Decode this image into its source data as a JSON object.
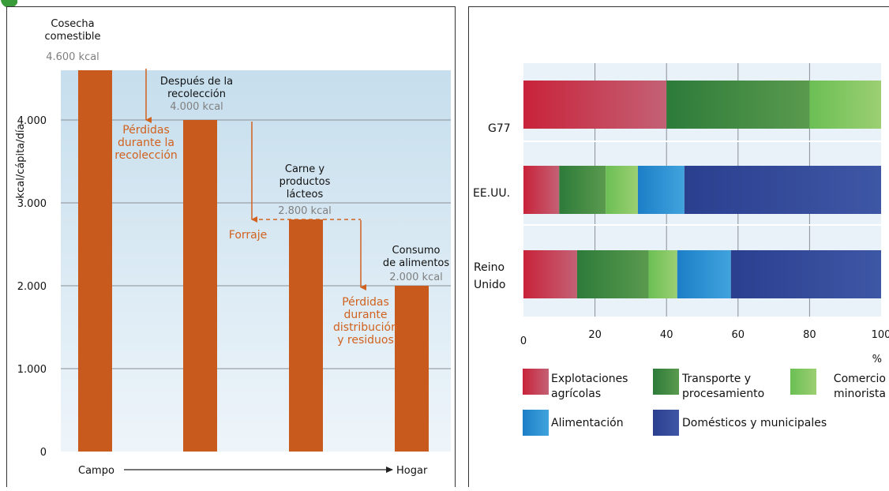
{
  "chart_data": [
    {
      "type": "bar",
      "ylabel": "kcal/cápita/día",
      "yticks": [
        "0",
        "1.000",
        "2.000",
        "3.000",
        "4.000"
      ],
      "ylim": [
        0,
        4600
      ],
      "grid": true,
      "bars": [
        {
          "value": 4600,
          "label_lines": [
            "Cosecha",
            "comestible"
          ],
          "value_label": "4.600 kcal"
        },
        {
          "value": 4000,
          "label_lines": [
            "Después de la",
            "recolección"
          ],
          "value_label": "4.000 kcal"
        },
        {
          "value": 2800,
          "label_lines": [
            "Carne y",
            "productos",
            "lácteos"
          ],
          "value_label": "2.800 kcal"
        },
        {
          "value": 2000,
          "label_lines": [
            "Consumo",
            "de alimentos"
          ],
          "value_label": "2.000 kcal"
        }
      ],
      "losses": [
        {
          "lines": [
            "Pérdidas",
            "durante la",
            "recolección"
          ]
        },
        {
          "lines": [
            "Forraje"
          ]
        },
        {
          "lines": [
            "Pérdidas",
            "durante",
            "distribución",
            "y residuos"
          ]
        }
      ],
      "xaxis": {
        "start": "Campo",
        "end": "Hogar"
      },
      "colors": {
        "bar": "#c85a1e",
        "loss_text": "#d1611e",
        "value_text": "#7f7f7f",
        "plot_bg_top": "#c6deed",
        "plot_bg_bottom": "#eef5fa"
      }
    },
    {
      "type": "bar",
      "orientation": "horizontal",
      "stacked": true,
      "categories": [
        "G77",
        "EE.UU.",
        "Reino Unido"
      ],
      "category_lines": [
        [
          "G77"
        ],
        [
          "EE.UU."
        ],
        [
          "Reino",
          "Unido"
        ]
      ],
      "xticks": [
        "0",
        "20",
        "40",
        "60",
        "80",
        "100"
      ],
      "xlim": [
        0,
        100
      ],
      "xunit": "%",
      "grid": true,
      "series": [
        {
          "name": "Explotaciones agrícolas",
          "legend_lines": [
            "Explotaciones",
            "agrícolas"
          ],
          "values": [
            40,
            10,
            15
          ],
          "color_start": "#c8233a",
          "color_end": "#c46175"
        },
        {
          "name": "Transporte y procesamiento",
          "legend_lines": [
            "Transporte y",
            "procesamiento"
          ],
          "values": [
            40,
            13,
            20
          ],
          "color_start": "#2d7b3a",
          "color_end": "#5a9a4e"
        },
        {
          "name": "Comercio minorista",
          "legend_lines": [
            "Comercio",
            "minorista"
          ],
          "values": [
            20,
            9,
            8
          ],
          "color_start": "#6bbf54",
          "color_end": "#9ccf72"
        },
        {
          "name": "Alimentación",
          "legend_lines": [
            "Alimentación"
          ],
          "values": [
            0,
            13,
            15
          ],
          "color_start": "#1c7fc7",
          "color_end": "#41a3dd"
        },
        {
          "name": "Domésticos y municipales",
          "legend_lines": [
            "Domésticos y municipales"
          ],
          "values": [
            0,
            55,
            42
          ],
          "color_start": "#2b3f8f",
          "color_end": "#3e57a5"
        }
      ],
      "colors": {
        "plot_bg": "#e9f2f9"
      }
    }
  ],
  "corner_mark_color": "#3a9b3a"
}
